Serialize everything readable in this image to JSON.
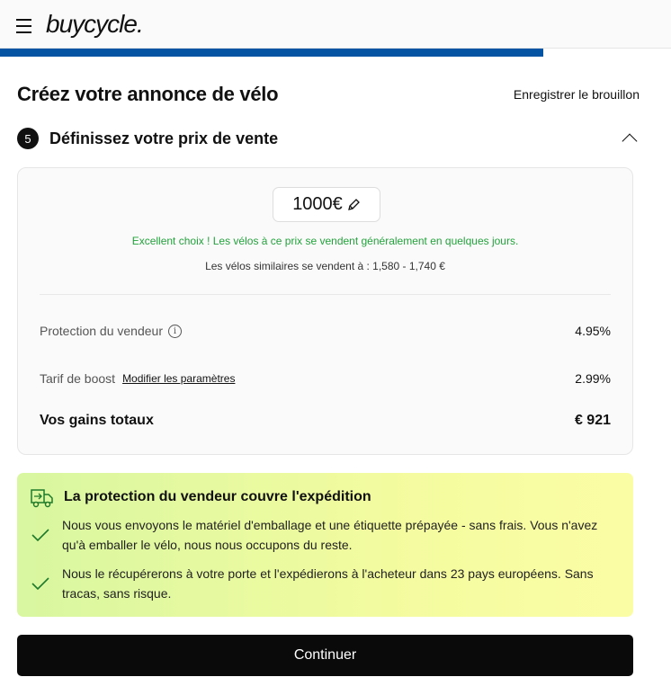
{
  "header": {
    "logo": "buycycle.",
    "progress_percent": 81
  },
  "page": {
    "title": "Créez votre annonce de vélo",
    "save_draft": "Enregistrer le brouillon"
  },
  "step": {
    "number": "5",
    "title": "Définissez votre prix de vente"
  },
  "pricing": {
    "price": "1000€",
    "feedback": "Excellent choix ! Les vélos à ce prix se vendent généralement en quelques jours.",
    "similar": "Les vélos similaires se vendent à : 1,580 - 1,740 €",
    "protection_label": "Protection du vendeur",
    "protection_value": "4.95%",
    "boost_label": "Tarif de boost",
    "boost_link": "Modifier les paramètres",
    "boost_value": "2.99%",
    "total_label": "Vos gains totaux",
    "total_value": "€ 921"
  },
  "promo": {
    "title": "La protection du vendeur couvre l'expédition",
    "items": [
      "Nous vous envoyons le matériel d'emballage et une étiquette prépayée - sans frais. Vous n'avez qu'à emballer le vélo, nous nous occupons du reste.",
      "Nous le récupérerons à votre porte et l'expédierons à l'acheteur dans 23 pays européens. Sans tracas, sans risque."
    ]
  },
  "cta": {
    "label": "Continuer"
  },
  "colors": {
    "accent": "#0553a3",
    "success": "#23a23c",
    "check": "#1e7a2a"
  }
}
